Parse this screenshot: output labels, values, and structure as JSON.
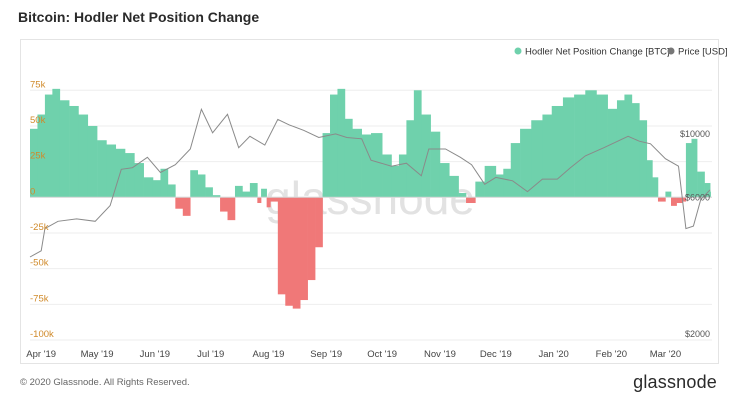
{
  "header": {
    "title": "Bitcoin: Hodler Net Position Change"
  },
  "watermark": "glassnode",
  "footer": {
    "copyright": "© 2020 Glassnode. All Rights Reserved.",
    "brand": "glassnode"
  },
  "colors": {
    "positive": "#6fd1ac",
    "negative": "#f07878",
    "price_line": "#8a8a8a",
    "left_axis_text": "#d08a2a",
    "grid": "#eeeeee"
  },
  "chart_data": {
    "type": "bar",
    "x_start": "2019-03-26",
    "x_end": "2020-03-26",
    "x_ticks": [
      "Apr '19",
      "May '19",
      "Jun '19",
      "Jul '19",
      "Aug '19",
      "Sep '19",
      "Oct '19",
      "Nov '19",
      "Dec '19",
      "Jan '20",
      "Feb '20",
      "Mar '20"
    ],
    "x_tick_dates": [
      "2019-04-01",
      "2019-05-01",
      "2019-06-01",
      "2019-07-01",
      "2019-08-01",
      "2019-09-01",
      "2019-10-01",
      "2019-11-01",
      "2019-12-01",
      "2020-01-01",
      "2020-02-01",
      "2020-03-01"
    ],
    "y_left": {
      "ticks": [
        "75k",
        "50k",
        "25k",
        "0",
        "-25k",
        "-50k",
        "-75k",
        "-100k"
      ],
      "tick_values": [
        75000,
        50000,
        25000,
        0,
        -25000,
        -50000,
        -75000,
        -100000
      ],
      "ylim": [
        -100000,
        78000
      ]
    },
    "y_right": {
      "scale": "log",
      "ticks": [
        "$10000",
        "$6000",
        "$2000"
      ],
      "tick_values": [
        10000,
        6000,
        2000
      ]
    },
    "series": [
      {
        "name": "Hodler Net Position Change [BTC]",
        "type": "bar",
        "color_positive": "#6fd1ac",
        "color_negative": "#f07878",
        "points": [
          [
            "2019-03-26",
            48000
          ],
          [
            "2019-03-30",
            58000
          ],
          [
            "2019-04-03",
            72000
          ],
          [
            "2019-04-07",
            76000
          ],
          [
            "2019-04-11",
            68000
          ],
          [
            "2019-04-16",
            64000
          ],
          [
            "2019-04-21",
            58000
          ],
          [
            "2019-04-26",
            50000
          ],
          [
            "2019-05-01",
            40000
          ],
          [
            "2019-05-06",
            37000
          ],
          [
            "2019-05-11",
            34000
          ],
          [
            "2019-05-16",
            31000
          ],
          [
            "2019-05-21",
            24000
          ],
          [
            "2019-05-26",
            14000
          ],
          [
            "2019-05-31",
            12000
          ],
          [
            "2019-06-04",
            20000
          ],
          [
            "2019-06-08",
            9000
          ],
          [
            "2019-06-12",
            -8000
          ],
          [
            "2019-06-16",
            -13000
          ],
          [
            "2019-06-20",
            19000
          ],
          [
            "2019-06-24",
            16000
          ],
          [
            "2019-06-28",
            7000
          ],
          [
            "2019-07-02",
            1500
          ],
          [
            "2019-07-06",
            -10000
          ],
          [
            "2019-07-10",
            -16000
          ],
          [
            "2019-07-14",
            8000
          ],
          [
            "2019-07-18",
            4000
          ],
          [
            "2019-07-22",
            10000
          ],
          [
            "2019-07-26",
            -4000
          ],
          [
            "2019-07-28",
            6000
          ],
          [
            "2019-07-31",
            -7000
          ],
          [
            "2019-08-02",
            -3000
          ],
          [
            "2019-08-06",
            -68000
          ],
          [
            "2019-08-10",
            -76000
          ],
          [
            "2019-08-14",
            -78000
          ],
          [
            "2019-08-18",
            -72000
          ],
          [
            "2019-08-22",
            -58000
          ],
          [
            "2019-08-26",
            -35000
          ],
          [
            "2019-08-30",
            45000
          ],
          [
            "2019-09-03",
            72000
          ],
          [
            "2019-09-07",
            76000
          ],
          [
            "2019-09-11",
            55000
          ],
          [
            "2019-09-15",
            48000
          ],
          [
            "2019-09-20",
            44000
          ],
          [
            "2019-09-25",
            45000
          ],
          [
            "2019-10-01",
            30000
          ],
          [
            "2019-10-06",
            22000
          ],
          [
            "2019-10-10",
            30000
          ],
          [
            "2019-10-14",
            54000
          ],
          [
            "2019-10-18",
            75000
          ],
          [
            "2019-10-22",
            58000
          ],
          [
            "2019-10-27",
            46000
          ],
          [
            "2019-11-01",
            24000
          ],
          [
            "2019-11-06",
            15000
          ],
          [
            "2019-11-11",
            3000
          ],
          [
            "2019-11-15",
            -4000
          ],
          [
            "2019-11-20",
            11000
          ],
          [
            "2019-11-25",
            22000
          ],
          [
            "2019-12-01",
            16000
          ],
          [
            "2019-12-05",
            20000
          ],
          [
            "2019-12-09",
            38000
          ],
          [
            "2019-12-14",
            48000
          ],
          [
            "2019-12-20",
            54000
          ],
          [
            "2019-12-26",
            58000
          ],
          [
            "2019-12-31",
            64000
          ],
          [
            "2020-01-06",
            70000
          ],
          [
            "2020-01-12",
            72000
          ],
          [
            "2020-01-18",
            75000
          ],
          [
            "2020-01-24",
            72000
          ],
          [
            "2020-01-30",
            62000
          ],
          [
            "2020-02-04",
            68000
          ],
          [
            "2020-02-08",
            72000
          ],
          [
            "2020-02-12",
            66000
          ],
          [
            "2020-02-16",
            54000
          ],
          [
            "2020-02-20",
            26000
          ],
          [
            "2020-02-23",
            14000
          ],
          [
            "2020-02-26",
            -3000
          ],
          [
            "2020-03-01",
            4000
          ],
          [
            "2020-03-04",
            -6000
          ],
          [
            "2020-03-07",
            -4000
          ],
          [
            "2020-03-10",
            -3000
          ],
          [
            "2020-03-12",
            38000
          ],
          [
            "2020-03-15",
            41000
          ],
          [
            "2020-03-18",
            18000
          ],
          [
            "2020-03-22",
            10000
          ],
          [
            "2020-03-25",
            4000
          ]
        ]
      },
      {
        "name": "Price [USD]",
        "type": "line",
        "color": "#8a8a8a",
        "points": [
          [
            "2019-03-26",
            3900
          ],
          [
            "2019-04-01",
            4100
          ],
          [
            "2019-04-03",
            4900
          ],
          [
            "2019-04-10",
            5200
          ],
          [
            "2019-04-20",
            5300
          ],
          [
            "2019-04-30",
            5200
          ],
          [
            "2019-05-08",
            5900
          ],
          [
            "2019-05-14",
            7900
          ],
          [
            "2019-05-20",
            8000
          ],
          [
            "2019-05-28",
            8700
          ],
          [
            "2019-06-04",
            7700
          ],
          [
            "2019-06-12",
            8200
          ],
          [
            "2019-06-20",
            9300
          ],
          [
            "2019-06-26",
            12800
          ],
          [
            "2019-07-02",
            10600
          ],
          [
            "2019-07-10",
            12300
          ],
          [
            "2019-07-16",
            9400
          ],
          [
            "2019-07-22",
            10300
          ],
          [
            "2019-07-30",
            9600
          ],
          [
            "2019-08-06",
            11800
          ],
          [
            "2019-08-12",
            11300
          ],
          [
            "2019-08-20",
            10800
          ],
          [
            "2019-08-28",
            10200
          ],
          [
            "2019-09-06",
            10500
          ],
          [
            "2019-09-12",
            10200
          ],
          [
            "2019-09-20",
            10100
          ],
          [
            "2019-09-25",
            8500
          ],
          [
            "2019-10-06",
            8100
          ],
          [
            "2019-10-14",
            8300
          ],
          [
            "2019-10-22",
            7500
          ],
          [
            "2019-10-26",
            9300
          ],
          [
            "2019-11-04",
            9300
          ],
          [
            "2019-11-12",
            8700
          ],
          [
            "2019-11-18",
            8200
          ],
          [
            "2019-11-25",
            7000
          ],
          [
            "2019-12-01",
            7400
          ],
          [
            "2019-12-10",
            7200
          ],
          [
            "2019-12-18",
            6600
          ],
          [
            "2019-12-26",
            7300
          ],
          [
            "2020-01-03",
            7300
          ],
          [
            "2020-01-10",
            8000
          ],
          [
            "2020-01-18",
            8800
          ],
          [
            "2020-01-28",
            9400
          ],
          [
            "2020-02-10",
            10300
          ],
          [
            "2020-02-16",
            9900
          ],
          [
            "2020-02-22",
            9700
          ],
          [
            "2020-03-01",
            8600
          ],
          [
            "2020-03-08",
            8100
          ],
          [
            "2020-03-12",
            4900
          ],
          [
            "2020-03-16",
            5000
          ],
          [
            "2020-03-20",
            6200
          ],
          [
            "2020-03-25",
            6700
          ]
        ]
      }
    ],
    "legend_position": "top-right",
    "grid": true
  }
}
